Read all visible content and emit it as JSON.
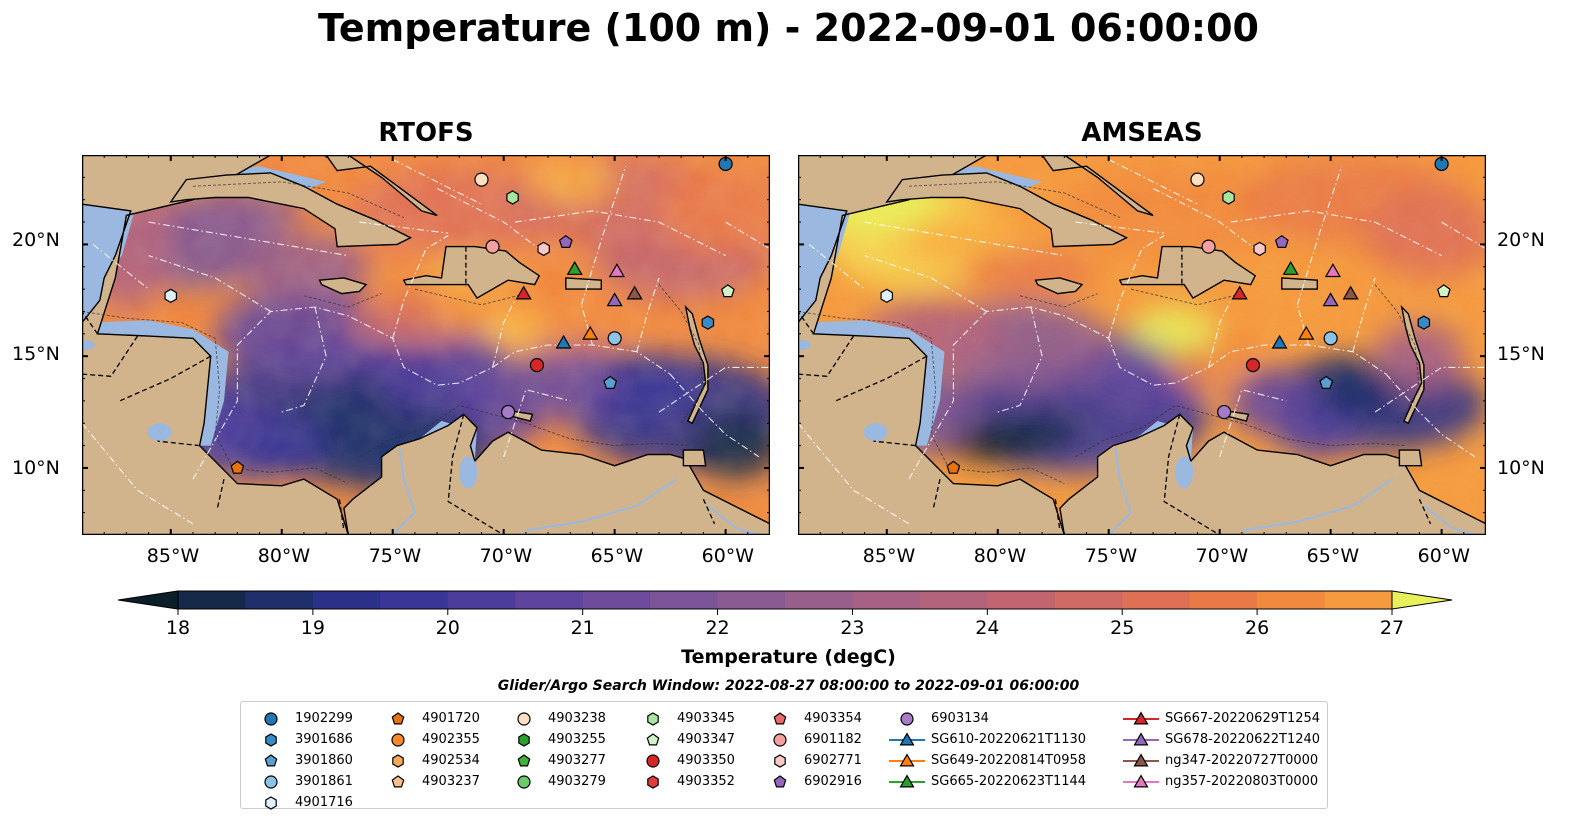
{
  "title": "Temperature (100 m) - 2022-09-01 06:00:00",
  "panels": [
    {
      "title": "RTOFS",
      "variant": "rtofs"
    },
    {
      "title": "AMSEAS",
      "variant": "amseas"
    }
  ],
  "axes": {
    "lon_labels": [
      "85°W",
      "80°W",
      "75°W",
      "70°W",
      "65°W",
      "60°W"
    ],
    "lat_labels": [
      "20°N",
      "15°N",
      "10°N"
    ],
    "lon_values": [
      -85,
      -80,
      -75,
      -70,
      -65,
      -60
    ],
    "lat_values": [
      20,
      15,
      10
    ],
    "lon_range": [
      -89,
      -58
    ],
    "lat_range": [
      7,
      24
    ]
  },
  "colorbar": {
    "title": "Temperature (degC)",
    "min": 18,
    "max": 27,
    "step": 0.5,
    "tick_labels": [
      "18",
      "19",
      "20",
      "21",
      "22",
      "23",
      "24",
      "25",
      "26",
      "27"
    ],
    "extend": "both",
    "colors": [
      "#0b1e2a",
      "#152a48",
      "#1e2f6b",
      "#2b3188",
      "#3a3698",
      "#4c3c9c",
      "#5e449e",
      "#6e4c9b",
      "#7c5497",
      "#8a5a92",
      "#985e8c",
      "#a66185",
      "#b4637c",
      "#c26571",
      "#d06a64",
      "#de7056",
      "#e97a48",
      "#f1893f",
      "#f59a3f",
      "#f8ad43",
      "#f9c04a",
      "#f5d551",
      "#e8f05a"
    ]
  },
  "search_window": "Glider/Argo Search Window: 2022-08-27 08:00:00 to 2022-09-01 06:00:00",
  "legend": [
    {
      "label": "1902299",
      "marker": "circle",
      "color": "#1f77b4"
    },
    {
      "label": "3901686",
      "marker": "hexagon",
      "color": "#3a8ac4"
    },
    {
      "label": "3901860",
      "marker": "pentagon",
      "color": "#5a9fd4"
    },
    {
      "label": "3901861",
      "marker": "circle",
      "color": "#8ec3e8"
    },
    {
      "label": "4901716",
      "marker": "hexagon",
      "color": "#e0f0fb"
    },
    {
      "label": "4901720",
      "marker": "pentagon",
      "color": "#e8720c"
    },
    {
      "label": "4902355",
      "marker": "circle",
      "color": "#f58a2a"
    },
    {
      "label": "4902534",
      "marker": "hexagon",
      "color": "#f8a85a"
    },
    {
      "label": "4903237",
      "marker": "pentagon",
      "color": "#fbc08a"
    },
    {
      "label": "4903238",
      "marker": "circle",
      "color": "#fde0c0"
    },
    {
      "label": "4903345",
      "marker": "hexagon",
      "color": "#a8e6a0"
    },
    {
      "label": "4903255",
      "marker": "hexagon",
      "color": "#2ca02c"
    },
    {
      "label": "4903277",
      "marker": "pentagon",
      "color": "#3cb43c"
    },
    {
      "label": "4903279",
      "marker": "circle",
      "color": "#6ccc6c"
    },
    {
      "label": "4903347",
      "marker": "pentagon",
      "color": "#d0f4c8"
    },
    {
      "label": "4903350",
      "marker": "circle",
      "color": "#d62728"
    },
    {
      "label": "4903352",
      "marker": "hexagon",
      "color": "#e03c3c"
    },
    {
      "label": "4903354",
      "marker": "pentagon",
      "color": "#e86a6a"
    },
    {
      "label": "6901182",
      "marker": "circle",
      "color": "#f4a0a0"
    },
    {
      "label": "6902771",
      "marker": "hexagon",
      "color": "#fbc8c8"
    },
    {
      "label": "6902916",
      "marker": "pentagon",
      "color": "#9467bd"
    },
    {
      "label": "6903134",
      "marker": "circle",
      "color": "#a67cc8"
    },
    {
      "label": "SG610-20220621T1130",
      "marker": "triangle",
      "color": "#1f77b4"
    },
    {
      "label": "SG649-20220814T0958",
      "marker": "triangle",
      "color": "#ff7f0e"
    },
    {
      "label": "SG665-20220623T1144",
      "marker": "triangle",
      "color": "#2ca02c"
    },
    {
      "label": "SG667-20220629T1254",
      "marker": "triangle",
      "color": "#d62728"
    },
    {
      "label": "SG678-20220622T1240",
      "marker": "triangle",
      "color": "#9467bd"
    },
    {
      "label": "ng347-20220727T0000",
      "marker": "triangle",
      "color": "#8c564b"
    },
    {
      "label": "ng357-20220803T0000",
      "marker": "triangle",
      "color": "#e377c2"
    }
  ],
  "observations": [
    {
      "id": "1902299",
      "lon": -60.0,
      "lat": 23.6
    },
    {
      "id": "3901686",
      "lon": -60.8,
      "lat": 16.5
    },
    {
      "id": "3901860",
      "lon": -65.2,
      "lat": 13.8
    },
    {
      "id": "3901861",
      "lon": -65.0,
      "lat": 15.8
    },
    {
      "id": "4901716",
      "lon": -85.0,
      "lat": 17.7
    },
    {
      "id": "4901720",
      "lon": -82.0,
      "lat": 10.0
    },
    {
      "id": "4903238",
      "lon": -71.0,
      "lat": 22.9
    },
    {
      "id": "4903345",
      "lon": -69.6,
      "lat": 22.1
    },
    {
      "id": "4903347",
      "lon": -59.9,
      "lat": 17.9
    },
    {
      "id": "4903350",
      "lon": -68.5,
      "lat": 14.6
    },
    {
      "id": "6902771",
      "lon": -68.2,
      "lat": 19.8
    },
    {
      "id": "6902916",
      "lon": -67.2,
      "lat": 20.1
    },
    {
      "id": "6901182",
      "lon": -70.5,
      "lat": 19.9
    },
    {
      "id": "6903134",
      "lon": -69.8,
      "lat": 12.5
    },
    {
      "id": "SG610-20220621T1130",
      "lon": -67.3,
      "lat": 15.6
    },
    {
      "id": "SG649-20220814T0958",
      "lon": -66.1,
      "lat": 16.0
    },
    {
      "id": "SG665-20220623T1144",
      "lon": -66.8,
      "lat": 18.9
    },
    {
      "id": "SG667-20220629T1254",
      "lon": -69.1,
      "lat": 17.8
    },
    {
      "id": "SG678-20220622T1240",
      "lon": -65.0,
      "lat": 17.5
    },
    {
      "id": "ng347-20220727T0000",
      "lon": -64.1,
      "lat": 17.8
    },
    {
      "id": "ng357-20220803T0000",
      "lon": -64.9,
      "lat": 18.8
    }
  ]
}
